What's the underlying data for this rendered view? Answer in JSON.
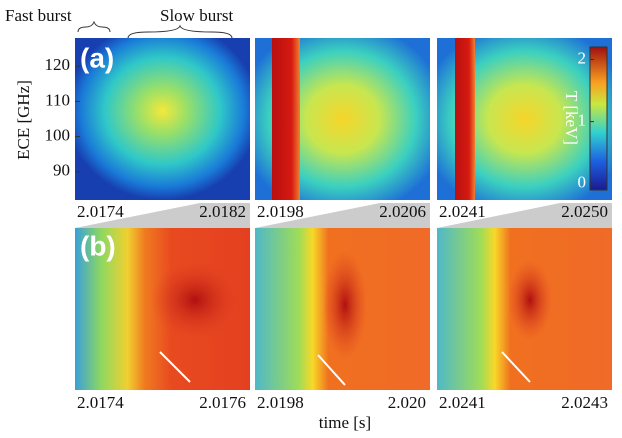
{
  "annotations": {
    "fast_burst": "Fast burst",
    "slow_burst": "Slow burst"
  },
  "panel_labels": [
    "(a)",
    "(b)"
  ],
  "y_axis": {
    "label": "ECE [GHz]",
    "ylim": [
      82,
      128
    ],
    "ticks": [
      90,
      100,
      110,
      120
    ]
  },
  "colorbar": {
    "label": "T [keV]",
    "lim": [
      -0.1,
      2.2
    ],
    "ticks": [
      0,
      1,
      2
    ]
  },
  "x_axis": {
    "label": "time [s]"
  },
  "top_row_ticks": [
    [
      "2.0174",
      "2.0182"
    ],
    [
      "2.0198",
      "2.0206"
    ],
    [
      "2.0241",
      "2.0250"
    ]
  ],
  "bottom_row_ticks": [
    [
      "2.0174",
      "2.0176"
    ],
    [
      "2.0198",
      "2.020"
    ],
    [
      "2.0241",
      "2.0243"
    ]
  ]
}
